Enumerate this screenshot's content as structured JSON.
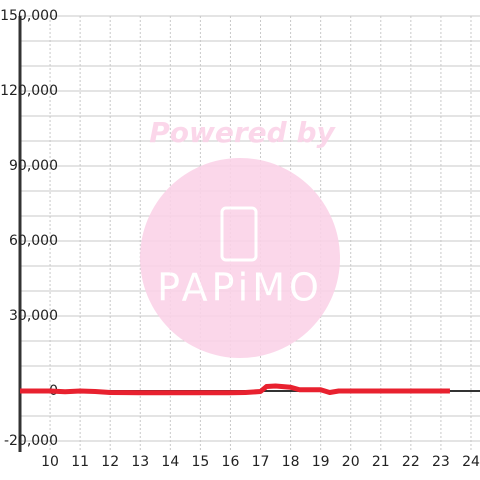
{
  "chart_data": {
    "type": "line",
    "watermark": {
      "text": "Powered by",
      "logo": "PAPiMO"
    },
    "x": [
      9,
      10,
      10.5,
      11,
      11.5,
      12,
      13,
      14,
      15,
      16,
      16.5,
      17,
      17.2,
      17.5,
      18,
      18.3,
      19,
      19.3,
      19.6,
      20,
      21,
      22,
      23,
      23.3
    ],
    "series": [
      {
        "color": "#e8212f",
        "values": [
          0,
          0,
          -300,
          0,
          -200,
          -600,
          -700,
          -700,
          -700,
          -700,
          -600,
          -200,
          1800,
          2000,
          1500,
          500,
          500,
          -600,
          0,
          0,
          0,
          0,
          0,
          0
        ]
      }
    ],
    "xlim": [
      9,
      24.3
    ],
    "ylim": [
      -20000,
      150000
    ],
    "xticks": [
      10,
      11,
      12,
      13,
      14,
      15,
      16,
      17,
      18,
      19,
      20,
      21,
      22,
      23,
      24
    ],
    "yticks": [
      {
        "value": -20000,
        "label": "-20,000"
      },
      0,
      {
        "value": 30000,
        "label": "30,000"
      },
      {
        "value": 60000,
        "label": "60,000"
      },
      {
        "value": 90000,
        "label": "90,000"
      },
      {
        "value": 120000,
        "label": "120,000"
      },
      {
        "value": 150000,
        "label": "150,000"
      }
    ],
    "yminor_ticks": [
      -10000,
      10000,
      20000,
      40000,
      50000,
      70000,
      80000,
      100000,
      110000,
      130000,
      140000
    ],
    "grid": true,
    "zero_line": true
  }
}
